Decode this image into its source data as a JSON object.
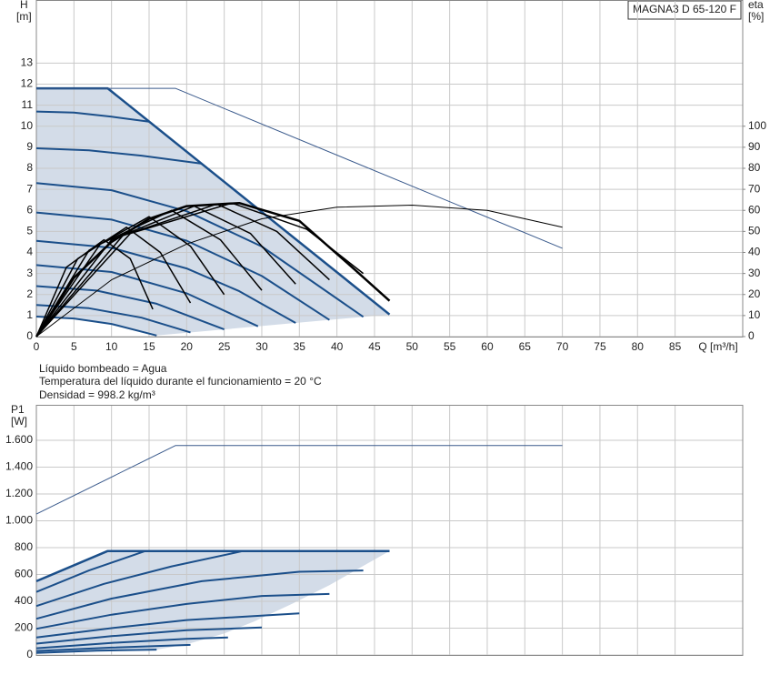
{
  "legend_box": "MAGNA3 D 65-120 F",
  "notes": [
    "Líquido bombeado = Agua",
    "Temperatura del líquido durante el funcionamiento = 20 °C",
    "Densidad = 998.2 kg/m³"
  ],
  "chart_data": [
    {
      "type": "line",
      "ylabel": "H",
      "yunit": "[m]",
      "y2label": "eta",
      "y2unit": "[%]",
      "xlabel": "Q [m³/h]",
      "xlim": [
        0,
        94
      ],
      "xticks": [
        0,
        5,
        10,
        15,
        20,
        25,
        30,
        35,
        40,
        45,
        50,
        55,
        60,
        65,
        70,
        75,
        80,
        85
      ],
      "ylim": [
        0,
        16
      ],
      "yticks": [
        0,
        1,
        2,
        3,
        4,
        5,
        6,
        7,
        8,
        9,
        10,
        11,
        12,
        13
      ],
      "y2lim": [
        0,
        160
      ],
      "y2ticks": [
        0,
        10,
        20,
        30,
        40,
        50,
        60,
        70,
        80,
        90,
        100
      ],
      "grid": true,
      "show_xtick_labels": true,
      "series": [
        {
          "color": "#d3dce8",
          "fill": true,
          "x": [
            0,
            9.5,
            47,
            16,
            10,
            5,
            0
          ],
          "values": [
            11.8,
            11.8,
            1.05,
            0.05,
            0.6,
            0.86,
            0.95
          ]
        },
        {
          "color": "#1b4f8a",
          "width": 2.5,
          "x": [
            0,
            9.5,
            47
          ],
          "values": [
            11.8,
            11.8,
            1.05
          ]
        },
        {
          "color": "#1b4f8a",
          "width": 2,
          "x": [
            0,
            5,
            10,
            15
          ],
          "values": [
            10.7,
            10.65,
            10.45,
            10.22
          ]
        },
        {
          "color": "#1b4f8a",
          "width": 2,
          "x": [
            0,
            7,
            14,
            22
          ],
          "values": [
            8.95,
            8.85,
            8.6,
            8.22
          ]
        },
        {
          "color": "#1b4f8a",
          "width": 2,
          "x": [
            0,
            10,
            20,
            30,
            43.5
          ],
          "values": [
            7.3,
            6.96,
            5.96,
            4.28,
            0.94
          ]
        },
        {
          "color": "#1b4f8a",
          "width": 2,
          "x": [
            0,
            10,
            20,
            30,
            39
          ],
          "values": [
            5.9,
            5.56,
            4.56,
            2.88,
            0.79
          ]
        },
        {
          "color": "#1b4f8a",
          "width": 2,
          "x": [
            0,
            10,
            20,
            27,
            34.5
          ],
          "values": [
            4.55,
            4.22,
            3.24,
            2.16,
            0.65
          ]
        },
        {
          "color": "#1b4f8a",
          "width": 2,
          "x": [
            0,
            10,
            20,
            29.5
          ],
          "values": [
            3.4,
            3.07,
            2.06,
            0.49
          ]
        },
        {
          "color": "#1b4f8a",
          "width": 2,
          "x": [
            0,
            8,
            16,
            25
          ],
          "values": [
            2.4,
            2.19,
            1.56,
            0.34
          ]
        },
        {
          "color": "#1b4f8a",
          "width": 2,
          "x": [
            0,
            7,
            14,
            20.5
          ],
          "values": [
            1.5,
            1.35,
            0.9,
            0.2
          ]
        },
        {
          "color": "#1b4f8a",
          "width": 2,
          "x": [
            0,
            5,
            10,
            16
          ],
          "values": [
            0.95,
            0.86,
            0.6,
            0.05
          ]
        },
        {
          "color": "#3a5a8c",
          "width": 1,
          "x": [
            0,
            18.5,
            70
          ],
          "values": [
            11.8,
            11.8,
            4.2
          ]
        },
        {
          "color": "#000000",
          "width": 1,
          "axis": "y2",
          "x": [
            0,
            10,
            20,
            30,
            40,
            50,
            60,
            70
          ],
          "values": [
            0,
            27,
            44,
            56,
            61.5,
            62.5,
            60,
            52
          ]
        },
        {
          "color": "#000000",
          "width": 1.5,
          "axis": "y2",
          "x": [
            0,
            4,
            9,
            12.5,
            15.5
          ],
          "values": [
            0,
            33,
            46,
            37,
            13
          ]
        },
        {
          "color": "#000000",
          "width": 1.5,
          "axis": "y2",
          "x": [
            0,
            5.5,
            12,
            16.5,
            20.5
          ],
          "values": [
            0,
            37,
            52,
            40,
            16
          ]
        },
        {
          "color": "#000000",
          "width": 1.5,
          "axis": "y2",
          "x": [
            0,
            7,
            15,
            20.5,
            25
          ],
          "values": [
            0,
            41,
            57,
            43,
            20
          ]
        },
        {
          "color": "#000000",
          "width": 1.5,
          "axis": "y2",
          "x": [
            0,
            8.5,
            18,
            24.5,
            30
          ],
          "values": [
            0,
            44,
            60,
            46,
            22
          ]
        },
        {
          "color": "#000000",
          "width": 1.5,
          "axis": "y2",
          "x": [
            0,
            10,
            21,
            28.5,
            34.5
          ],
          "values": [
            0,
            46,
            62,
            49,
            25
          ]
        },
        {
          "color": "#000000",
          "width": 1.5,
          "axis": "y2",
          "x": [
            0,
            11.5,
            24,
            32,
            39
          ],
          "values": [
            0,
            48,
            63,
            50,
            27
          ]
        },
        {
          "color": "#000000",
          "width": 1.5,
          "axis": "y2",
          "x": [
            0,
            12.5,
            26,
            36,
            43.5
          ],
          "values": [
            0,
            49,
            63.5,
            51,
            30
          ]
        },
        {
          "color": "#000000",
          "width": 2.5,
          "axis": "y2",
          "x": [
            0,
            5,
            10,
            15,
            20,
            27,
            35,
            42,
            47
          ],
          "values": [
            0,
            28,
            45,
            56,
            62,
            63.5,
            55,
            33,
            17
          ]
        }
      ]
    },
    {
      "type": "line",
      "ylabel": "P1",
      "yunit": "[W]",
      "xlim": [
        0,
        94
      ],
      "xticks": [
        0,
        5,
        10,
        15,
        20,
        25,
        30,
        35,
        40,
        45,
        50,
        55,
        60,
        65,
        70,
        75,
        80,
        85
      ],
      "ylim": [
        0,
        1864
      ],
      "yticks": [
        0,
        200,
        400,
        600,
        800,
        {
          "value": 1000,
          "label": "1.000"
        },
        {
          "value": 1200,
          "label": "1.200"
        },
        {
          "value": 1400,
          "label": "1.400"
        },
        {
          "value": 1600,
          "label": "1.600"
        }
      ],
      "grid": true,
      "show_xtick_labels": false,
      "series": [
        {
          "color": "#d3dce8",
          "fill": true,
          "x": [
            0,
            9.5,
            47,
            44,
            39,
            34,
            29,
            25,
            20,
            16,
            0
          ],
          "values": [
            550,
            775,
            775,
            680,
            520,
            380,
            250,
            160,
            80,
            40,
            15
          ]
        },
        {
          "color": "#3a5a8c",
          "width": 1,
          "x": [
            0,
            18.5,
            70
          ],
          "values": [
            1050,
            1560,
            1560
          ]
        },
        {
          "color": "#1b4f8a",
          "width": 2.5,
          "x": [
            0,
            9.5,
            47
          ],
          "values": [
            550,
            775,
            775
          ]
        },
        {
          "color": "#1b4f8a",
          "width": 2,
          "x": [
            0,
            7,
            14.5
          ],
          "values": [
            470,
            630,
            775
          ]
        },
        {
          "color": "#1b4f8a",
          "width": 2,
          "x": [
            0,
            9,
            18,
            27.5
          ],
          "values": [
            365,
            530,
            660,
            775
          ]
        },
        {
          "color": "#1b4f8a",
          "width": 2,
          "x": [
            0,
            10,
            22,
            35,
            43.5
          ],
          "values": [
            270,
            420,
            550,
            620,
            630
          ]
        },
        {
          "color": "#1b4f8a",
          "width": 2,
          "x": [
            0,
            10,
            20,
            30,
            39
          ],
          "values": [
            195,
            300,
            380,
            440,
            455
          ]
        },
        {
          "color": "#1b4f8a",
          "width": 2,
          "x": [
            0,
            10,
            20,
            35
          ],
          "values": [
            130,
            200,
            260,
            310
          ]
        },
        {
          "color": "#1b4f8a",
          "width": 2,
          "x": [
            0,
            10,
            20,
            30
          ],
          "values": [
            85,
            140,
            185,
            205
          ]
        },
        {
          "color": "#1b4f8a",
          "width": 2,
          "x": [
            0,
            10,
            20,
            25.5
          ],
          "values": [
            50,
            90,
            120,
            130
          ]
        },
        {
          "color": "#1b4f8a",
          "width": 2,
          "x": [
            0,
            10,
            20.5
          ],
          "values": [
            30,
            55,
            75
          ]
        },
        {
          "color": "#1b4f8a",
          "width": 2,
          "x": [
            0,
            8,
            16
          ],
          "values": [
            15,
            32,
            40
          ]
        }
      ]
    }
  ]
}
